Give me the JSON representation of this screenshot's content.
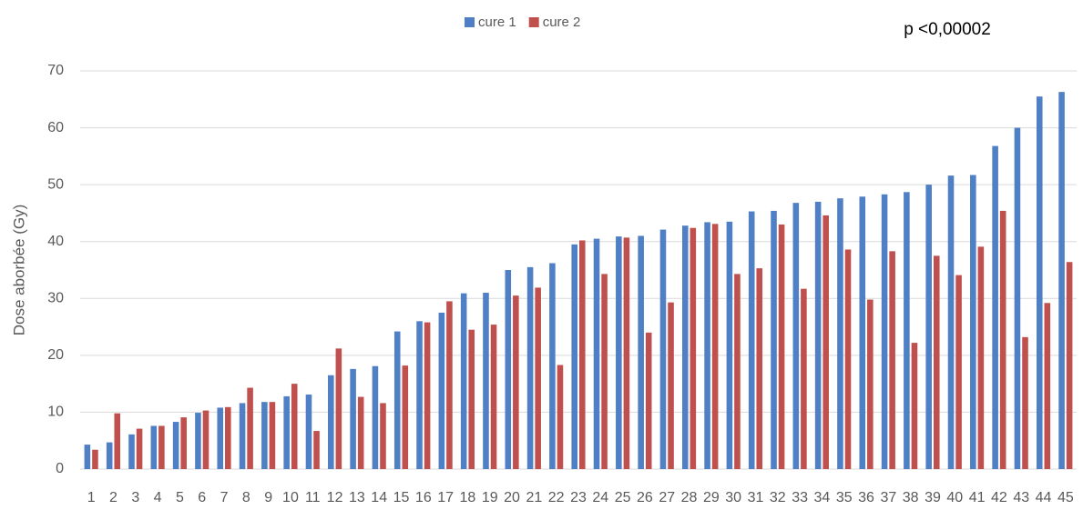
{
  "chart_data": {
    "type": "bar",
    "annotation": "p <0,00002",
    "y_label": "Dose aborbée (Gy)",
    "categories": [
      "1",
      "2",
      "3",
      "4",
      "5",
      "6",
      "7",
      "8",
      "9",
      "10",
      "11",
      "12",
      "13",
      "14",
      "15",
      "16",
      "17",
      "18",
      "19",
      "20",
      "21",
      "22",
      "23",
      "24",
      "25",
      "26",
      "27",
      "28",
      "29",
      "30",
      "31",
      "32",
      "33",
      "34",
      "35",
      "36",
      "37",
      "38",
      "39",
      "40",
      "41",
      "42",
      "43",
      "44",
      "45"
    ],
    "series": [
      {
        "name": "cure 1",
        "color": "#4f7fc4",
        "values": [
          4.3,
          4.7,
          6.1,
          7.6,
          8.3,
          9.9,
          10.8,
          11.6,
          11.8,
          12.8,
          13.1,
          16.5,
          17.6,
          18.1,
          24.2,
          26.0,
          27.5,
          30.9,
          31.0,
          35.0,
          35.5,
          36.2,
          39.5,
          40.5,
          40.9,
          41.0,
          42.1,
          42.8,
          43.4,
          43.5,
          45.3,
          45.4,
          46.8,
          47.0,
          47.6,
          47.9,
          48.3,
          48.7,
          50.0,
          51.6,
          51.7,
          56.8,
          60.0,
          65.5,
          66.3
        ]
      },
      {
        "name": "cure 2",
        "color": "#c0504d",
        "values": [
          3.4,
          9.8,
          7.1,
          7.6,
          9.1,
          10.3,
          10.9,
          14.3,
          11.8,
          15.0,
          6.7,
          21.2,
          12.7,
          11.6,
          18.2,
          25.8,
          29.5,
          24.5,
          25.4,
          30.5,
          31.9,
          18.3,
          40.2,
          34.3,
          40.7,
          24.0,
          29.3,
          42.4,
          43.1,
          34.3,
          35.3,
          43.0,
          31.7,
          44.6,
          38.6,
          29.8,
          38.3,
          22.2,
          37.5,
          34.1,
          39.1,
          45.4,
          23.2,
          29.2,
          36.4
        ]
      }
    ],
    "ylim": [
      0,
      70
    ],
    "yticks": [
      0,
      10,
      20,
      30,
      40,
      50,
      60,
      70
    ],
    "grid": true,
    "legend": "top"
  }
}
